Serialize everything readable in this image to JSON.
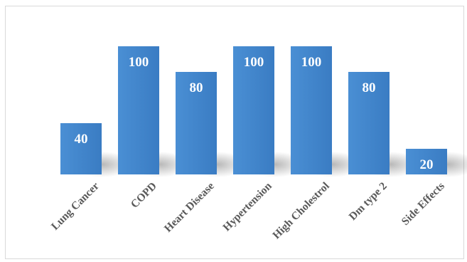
{
  "chart_data": {
    "type": "bar",
    "categories": [
      "Lung Cancer",
      "COPD",
      "Heart Disease",
      "Hypertension",
      "High Cholestrol",
      "Dm type 2",
      "Side Effects"
    ],
    "values": [
      40,
      100,
      80,
      100,
      100,
      80,
      20
    ],
    "title": "",
    "xlabel": "",
    "ylabel": "",
    "ylim": [
      0,
      100
    ],
    "grid": false,
    "legend": "none",
    "data_labels": true,
    "bar_color": "#4a8fd4",
    "bar_color_dark": "#3a7cc3",
    "label_color": "#595959"
  }
}
